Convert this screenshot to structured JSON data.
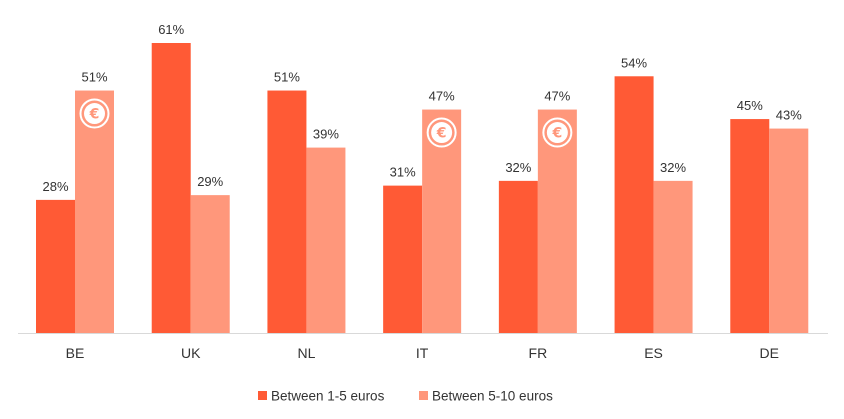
{
  "chart_data": {
    "type": "bar",
    "categories": [
      "BE",
      "UK",
      "NL",
      "IT",
      "FR",
      "ES",
      "DE"
    ],
    "series": [
      {
        "name": "Between 1-5 euros",
        "values": [
          28,
          61,
          51,
          31,
          32,
          54,
          45
        ],
        "labels": [
          "28%",
          "61%",
          "51%",
          "31%",
          "32%",
          "54%",
          "45%"
        ],
        "color": "#ff5a35"
      },
      {
        "name": "Between 5-10 euros",
        "values": [
          51,
          29,
          39,
          47,
          47,
          32,
          43
        ],
        "labels": [
          "51%",
          "29%",
          "39%",
          "47%",
          "47%",
          "32%",
          "43%"
        ],
        "color": "#ff977b"
      }
    ],
    "highlight_icon": {
      "name": "euro-coin-icon",
      "symbol": "€",
      "series_index": 1,
      "categories": [
        "BE",
        "IT",
        "FR"
      ]
    },
    "ylim": [
      0,
      61
    ],
    "grid": false,
    "legend_position": "bottom-center",
    "title": "",
    "xlabel": "",
    "ylabel": ""
  }
}
